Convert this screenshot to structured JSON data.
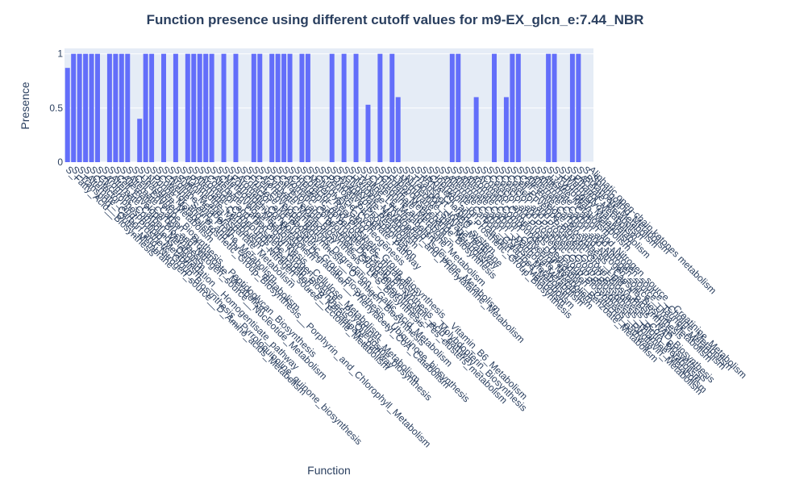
{
  "chart_data": {
    "type": "bar",
    "title": "Function presence using different cutoff values for m9-EX_glcn_e:7.44_NBR",
    "x_label": "Function",
    "y_label": "Presence",
    "color": "#636efa",
    "grid": true,
    "ylim": [
      0,
      1.05
    ],
    "yticks": [
      0,
      0.5,
      1
    ],
    "categories": [
      "S_Fatty_Acid__Biosynthesis",
      "S_Transport__Outer_Membrane",
      "S_Alternate_Carbon_and_Nitrogen_source__D_Amino_acids_Metabolism",
      "S_Cofactor_and_Prosthetic_Group_Biosynthesis__Pyrroloquinoline_quinone_biosynthesis",
      "S_Glycerophospholipid_Metabolism",
      "S_Aromatic_Compounds_Degradation__Homogentisate_pathway",
      "S_Alternate_Carbon_Metabolism",
      "S_Cell_Envelope_Biosynthesis",
      "S_Alternate_Carbon_and_Nitrogen_source__Nucleotide_Metabolism",
      "S_Alternate_Carbon__Propanoate_Metabolism",
      "S_Cell_Envelope_Biosynthesis__Peptidoglycan_Biosynthesis",
      "S_Unassigned",
      "S_Nitrogen_Metabolism",
      "S_Purine_Metabolism",
      "S_Cofactor_and_Prosthetic_Group_Biosynthesis__Porphyrin_and_Chlorophyll_Metabolism",
      "S_Glycine_Serine_and_threonine_metabolism",
      "S_Arginine_and_Proline_Metabolism",
      "S_Sulfur_Metabolism",
      "S_Alanine_and_Aspartate_Metabolism",
      "S_Pyrimidine_Metabolism",
      "S_Alternate_Carbon_and_Nitrogen_source__Ectoine_Metabolism",
      "S_Aromatic_Compounds_Degradation__B_Ketoadipate_pathway",
      "S_Cofactor_and_Prosthetic_Group_Biosynthesis__Queuosine_biosynthesis",
      "S_Alternate_Carbon_and_Nitrogen_source__Polyamines_Metabolism",
      "S_Cell_Envelope_Biosynthesis__Cellulose_Metabolism",
      "S_Methionine_Metabolism",
      "S_Formaldehyde_Metabolism",
      "S_Aromatic_Compounds_Degradation__Phenylacetyl_CoA_Catabolism",
      "S_Cofactor_and_Prosthetic_Group_Biosynthesis__Ubiquinone_biosynthesis",
      "S_Fructose_Metabolism",
      "S_Cell_Envelope_Biosynthesis__O_antigen_Biosynthesis",
      "S_Aromatic_Compounds_Degradation__Gallic_acid_Metabolism",
      "S_Pyruvate_Metabolism",
      "S_Cell_Envelope_Biosynthesis__LPS_Biosynthesis",
      "S_Cofactor_and_Prosthetic_Group_Biosynthesis__Fes_clusters_metabolism",
      "S_Aromatic_Compounds_Degradation__Nicotinic_acid_pathway",
      "S_Cofactor_and_Prosthetic_Group_Biosynthesis__Molybdopterin_Biosynthesis",
      "S_Inorganic_polyphosphates_metabolism",
      "S_Cofactor_and_Prosthetic_Group_Biosynthesis__Vitamin_B6_Metabolism",
      "S_Murein_Recycling",
      "S_Glycolysis_Gluconeogenesis",
      "S_Citric_Acid_Cycle",
      "S_Pentose_Phosphate_Pathway",
      "S_Oxidative_Phosphorylation",
      "S_Anaplerotic_Reactions",
      "S_Glyoxylate_Metabolism",
      "S_Histidine_Metabolism",
      "S_Tyrosine_Tryptophan_and_Phenylalanine_Metabolism",
      "S_Valine_Leucine_and_Isoleucine_Metabolism",
      "S_Cysteine_Metabolism",
      "S_Threonine_and_Lysine_Metabolism",
      "S_Glutamate_Metabolism",
      "S_Folate_Metabolism",
      "S_Lipopolysaccharide_Biosynthesis",
      "S_Membrane_Lipid_Metabolism",
      "S_Nucleotide_Salvage_Pathway",
      "S_Transport__Inner_Membrane",
      "S_Transport__ABC_system",
      "S_tRNA_Charging",
      "S_Cofactor_and_Prosthetic_Group_Biosynthesis",
      "S_Inorganic_Ion_Transport_and_Metabolism",
      "S_Alternate_Carbon__Galactose_Metabolism",
      "S_Alternate_Carbon__Xylose_Metabolism",
      "S_Alternate_Carbon__Mannose_Metabolism",
      "S_Alternate_Carbon__Gluconate_Metabolism",
      "S_Alternate_Carbon__Glycerol_Metabolism",
      "S_Aromatic_Compounds_Degradation__Benzoate_Metabolism",
      "S_Aromatic_Compounds_Degradation__Catechol_pathway",
      "S_Cofactor_and_Prosthetic_Group_Biosynthesis__Riboflavin_Metabolism",
      "S_Cofactor_and_Prosthetic_Group_Biosynthesis__Thiamine_Metabolism",
      "S_Cofactor_and_Prosthetic_Group_Biosynthesis__Biotin_Metabolism",
      "S_Cofactor_and_Prosthetic_Group_Biosynthesis__CoA_Biosynthesis",
      "S_Cofactor_and_Prosthetic_Group_Biosynthesis__NAD_Biosynthesis",
      "S_Cell_Envelope_Biosynthesis__Lipid_A_Biosynthesis",
      "S_Cell_Envelope_Biosynthesis__Capsule_Biosynthesis",
      "S_Alternate_Carbon_and_Nitrogen_source__Urea_Metabolism",
      "S_Alternate_Carbon_and_Nitrogen_source__Taurine_Metabolism",
      "S_Alternate_Carbon_and_Nitrogen_source__Choline_Metabolism",
      "S_Alternate_Carbon_and_Nitrogen_source__Creatinine_Metabolism",
      "S_Lysine_Metabolism",
      "S_Tryptophan_Metabolism",
      "S_Hydrogen_Metabolism",
      "S_Methylglyoxal_Metabolism",
      "S_Ethanol_Metabolism",
      "S_Acetate_Metabolism",
      "S_Butanoate_Metabolism",
      "S_Sphingolipid_Metabolism",
      "Aliphatic open-chain ketones metabolism"
    ],
    "values": [
      0.87,
      1,
      1,
      1,
      1,
      1,
      0,
      1,
      1,
      1,
      1,
      0,
      0.4,
      1,
      1,
      0,
      1,
      0,
      1,
      0,
      1,
      1,
      1,
      1,
      1,
      0,
      1,
      0,
      1,
      0,
      0,
      1,
      1,
      0,
      1,
      1,
      1,
      1,
      0,
      1,
      1,
      0,
      0,
      0,
      1,
      0,
      1,
      0,
      1,
      0,
      0.53,
      0,
      1,
      0,
      1,
      0.6,
      0,
      0,
      0,
      0,
      0,
      0,
      0,
      0,
      1,
      1,
      0,
      0,
      0.6,
      0,
      0,
      1,
      0,
      0.6,
      1,
      1,
      0,
      0,
      0,
      0,
      1,
      1,
      0,
      0,
      1,
      1,
      0,
      0
    ]
  }
}
